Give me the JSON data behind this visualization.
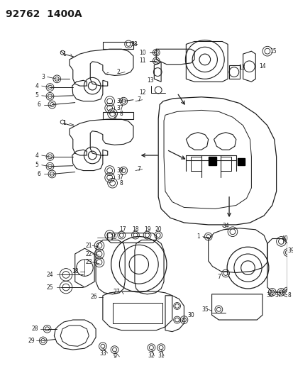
{
  "title": "92762  1400A",
  "bg_color": "#ffffff",
  "line_color": "#1a1a1a",
  "title_fontsize": 10,
  "fig_width": 4.14,
  "fig_height": 5.33,
  "dpi": 100
}
